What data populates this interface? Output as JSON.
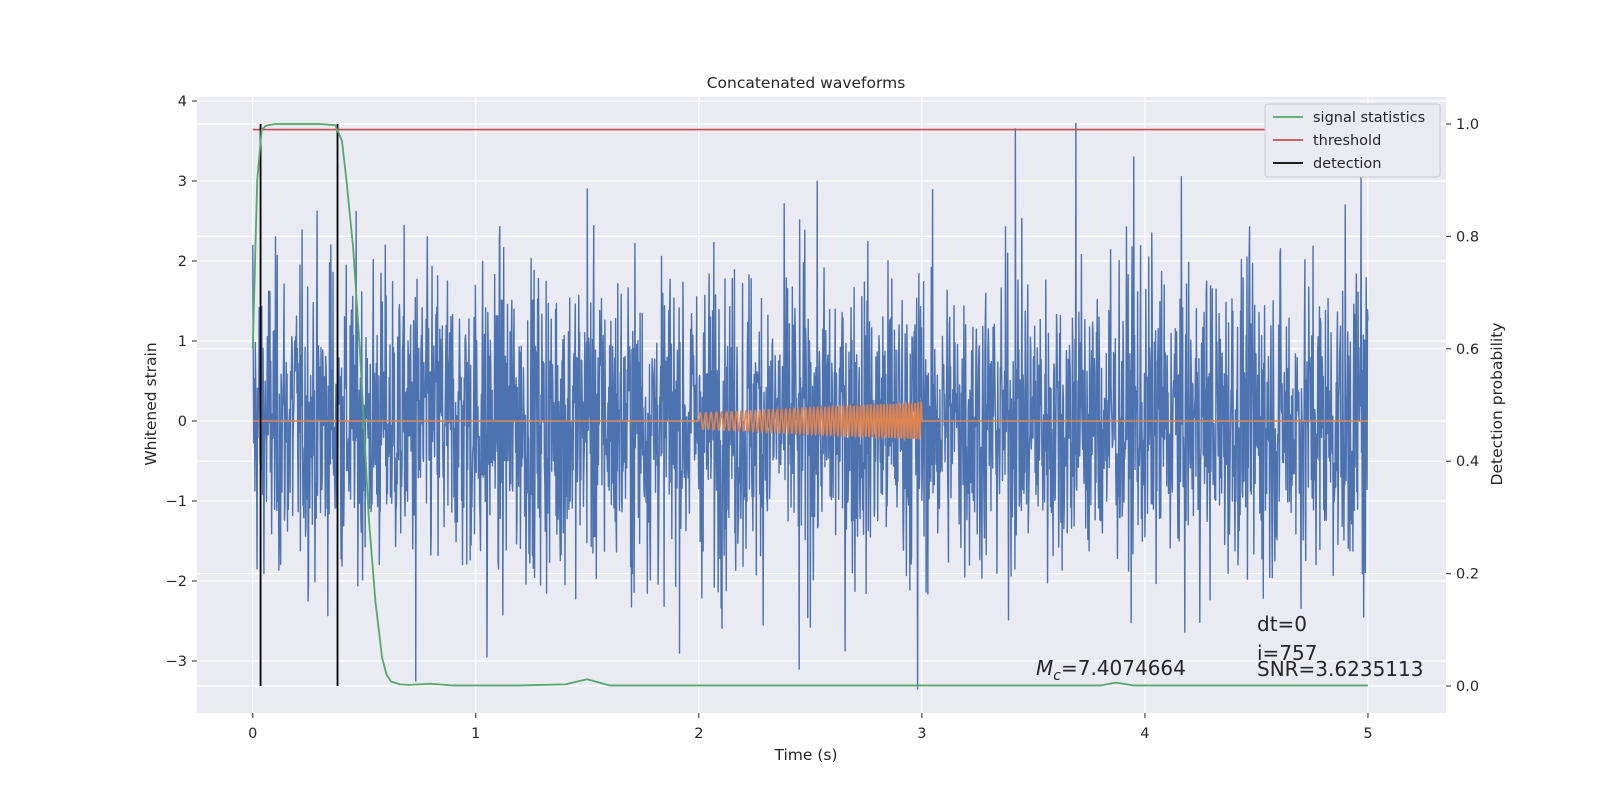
{
  "chart_data": {
    "type": "line",
    "title": "Concatenated waveforms",
    "xlabel": "Time (s)",
    "ylabel_left": "Whitened strain",
    "ylabel_right": "Detection probability",
    "xlim": [
      -0.25,
      5.35
    ],
    "ylim_left": [
      -3.65,
      4.05
    ],
    "ylim_right": [
      -0.048,
      1.048
    ],
    "x_ticks": [
      0,
      1,
      2,
      3,
      4,
      5
    ],
    "x_tick_labels": [
      "0",
      "1",
      "2",
      "3",
      "4",
      "5"
    ],
    "y_left_ticks": [
      -3,
      -2,
      -1,
      0,
      1,
      2,
      3,
      4
    ],
    "y_left_tick_labels": [
      "−3",
      "−2",
      "−1",
      "0",
      "1",
      "2",
      "3",
      "4"
    ],
    "y_right_ticks": [
      0.0,
      0.2,
      0.4,
      0.6,
      0.8,
      1.0
    ],
    "y_right_tick_labels": [
      "0.0",
      "0.2",
      "0.4",
      "0.6",
      "0.8",
      "1.0"
    ],
    "grid": true,
    "legend_position": "top-right",
    "legend": [
      "signal statistics",
      "threshold",
      "detection"
    ],
    "series": [
      {
        "name": "whitened strain",
        "axis": "left",
        "color": "#4c72b0",
        "x_range": [
          0,
          5
        ],
        "amplitude_envelope": [
          -3.3,
          3.7
        ],
        "sample_peaks": [
          {
            "x": 0.0,
            "y": 2.2
          },
          {
            "x": 0.35,
            "y": 2.2
          },
          {
            "x": 0.73,
            "y": -3.25
          },
          {
            "x": 1.05,
            "y": -2.95
          },
          {
            "x": 1.5,
            "y": 2.9
          },
          {
            "x": 2.45,
            "y": -3.1
          },
          {
            "x": 2.98,
            "y": -3.35
          },
          {
            "x": 3.42,
            "y": 3.65
          },
          {
            "x": 3.69,
            "y": 3.72
          },
          {
            "x": 3.95,
            "y": 3.3
          },
          {
            "x": 4.97,
            "y": 3.1
          },
          {
            "x": 4.98,
            "y": -2.45
          }
        ]
      },
      {
        "name": "injected signal",
        "axis": "left",
        "color": "#dd8452",
        "x_range": [
          0,
          5
        ],
        "chirp": {
          "start": 2.0,
          "end": 3.0,
          "amp_start": 0.1,
          "amp_end": 0.23,
          "freq_start": 40,
          "freq_end": 75
        }
      },
      {
        "name": "signal statistics",
        "axis": "right",
        "color": "#55a868",
        "x": [
          0.0,
          0.02,
          0.04,
          0.06,
          0.1,
          0.2,
          0.3,
          0.37,
          0.4,
          0.42,
          0.45,
          0.48,
          0.5,
          0.52,
          0.55,
          0.58,
          0.6,
          0.62,
          0.66,
          0.7,
          0.8,
          0.9,
          1.2,
          1.4,
          1.5,
          1.6,
          2.0,
          3.0,
          3.8,
          3.87,
          3.95,
          4.2,
          5.0
        ],
        "y": [
          0.6,
          0.9,
          0.99,
          0.997,
          1.0,
          1.0,
          1.0,
          0.998,
          0.97,
          0.9,
          0.78,
          0.6,
          0.45,
          0.3,
          0.15,
          0.05,
          0.02,
          0.008,
          0.003,
          0.002,
          0.004,
          0.001,
          0.001,
          0.003,
          0.012,
          0.001,
          0.001,
          0.001,
          0.001,
          0.006,
          0.001,
          0.001,
          0.001
        ]
      },
      {
        "name": "threshold",
        "axis": "right",
        "color": "#c44e52",
        "x": [
          0.0,
          5.0
        ],
        "y": [
          0.99,
          0.99
        ]
      },
      {
        "name": "detection",
        "axis": "right",
        "color": "#000000",
        "vlines": [
          0.035,
          0.38
        ],
        "range": [
          0.0,
          1.0
        ]
      }
    ],
    "annotations": {
      "dt": "dt=0",
      "i": "i=757",
      "snr": "SNR=3.6235113",
      "mc_symbol": "M",
      "mc_sub": "c",
      "mc_value": "=7.4074664"
    }
  }
}
